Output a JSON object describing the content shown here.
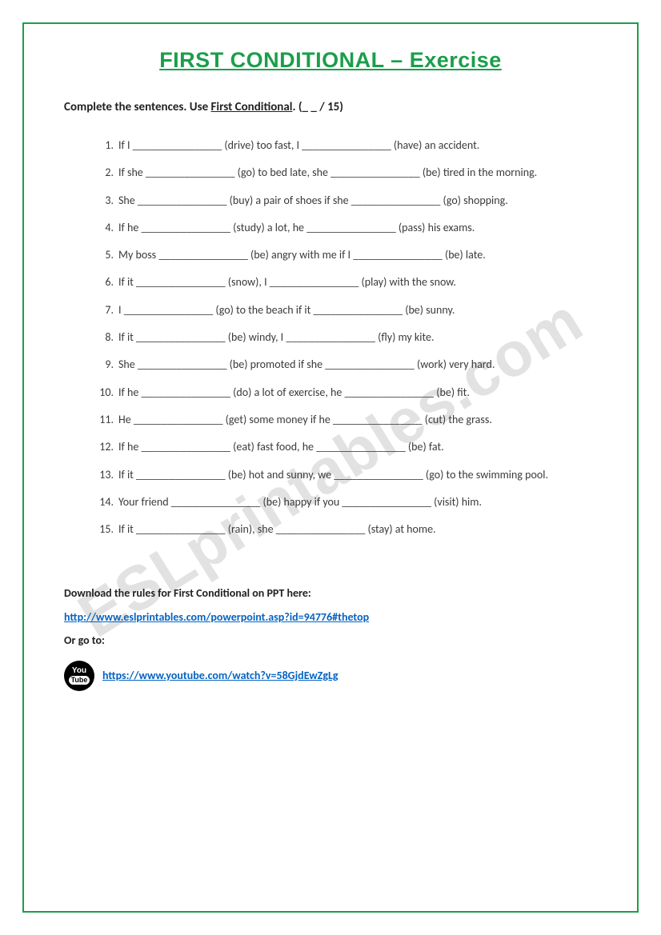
{
  "title": "FIRST CONDITIONAL – Exercise",
  "instruction_prefix": "Complete the sentences. Use ",
  "instruction_underlined": "First Conditional",
  "instruction_suffix": ". (_ _ / 15)",
  "blank": "________________",
  "items": [
    {
      "n": "1.",
      "text": "If I ________________ (drive) too fast, I ________________ (have) an accident."
    },
    {
      "n": "2.",
      "text": "If she ________________ (go) to bed late, she ________________ (be) tired in the morning."
    },
    {
      "n": "3.",
      "text": "She ________________ (buy) a pair of shoes if she ________________ (go) shopping."
    },
    {
      "n": "4.",
      "text": "If he ________________ (study) a lot, he ________________ (pass) his exams."
    },
    {
      "n": "5.",
      "text": "My boss ________________ (be) angry with me if I ________________ (be) late."
    },
    {
      "n": "6.",
      "text": "If it ________________ (snow), I ________________ (play) with the snow."
    },
    {
      "n": "7.",
      "text": "I ________________ (go) to the beach if it ________________ (be) sunny."
    },
    {
      "n": "8.",
      "text": "If it ________________ (be) windy, I ________________ (fly) my kite."
    },
    {
      "n": "9.",
      "text": "She ________________ (be) promoted if she ________________ (work) very hard."
    },
    {
      "n": "10.",
      "text": "If he ________________ (do) a lot of exercise, he ________________ (be) fit."
    },
    {
      "n": "11.",
      "text": "He ________________ (get) some money if he ________________ (cut) the grass."
    },
    {
      "n": "12.",
      "text": "If he ________________ (eat) fast food, he ________________ (be) fat."
    },
    {
      "n": "13.",
      "text": "If it ________________ (be) hot and sunny, we ________________ (go) to the swimming pool."
    },
    {
      "n": "14.",
      "text": "Your friend ________________ (be) happy if you ________________ (visit) him."
    },
    {
      "n": "15.",
      "text": "If it ________________ (rain), she ________________ (stay) at home."
    }
  ],
  "footer": {
    "download_text": "Download the rules for First Conditional on PPT here:",
    "ppt_link": "http://www.eslprintables.com/powerpoint.asp?id=94776#thetop",
    "or_text": "Or go to:",
    "yt_link": "https://www.youtube.com/watch?v=58GjdEwZgLg",
    "yt_icon_top": "You",
    "yt_icon_bottom": "Tube"
  },
  "watermark": "ESLprintables.com",
  "colors": {
    "border": "#1b9e4b",
    "title": "#1b9e4b",
    "link": "#0563c1",
    "text": "#3a3a3a"
  }
}
